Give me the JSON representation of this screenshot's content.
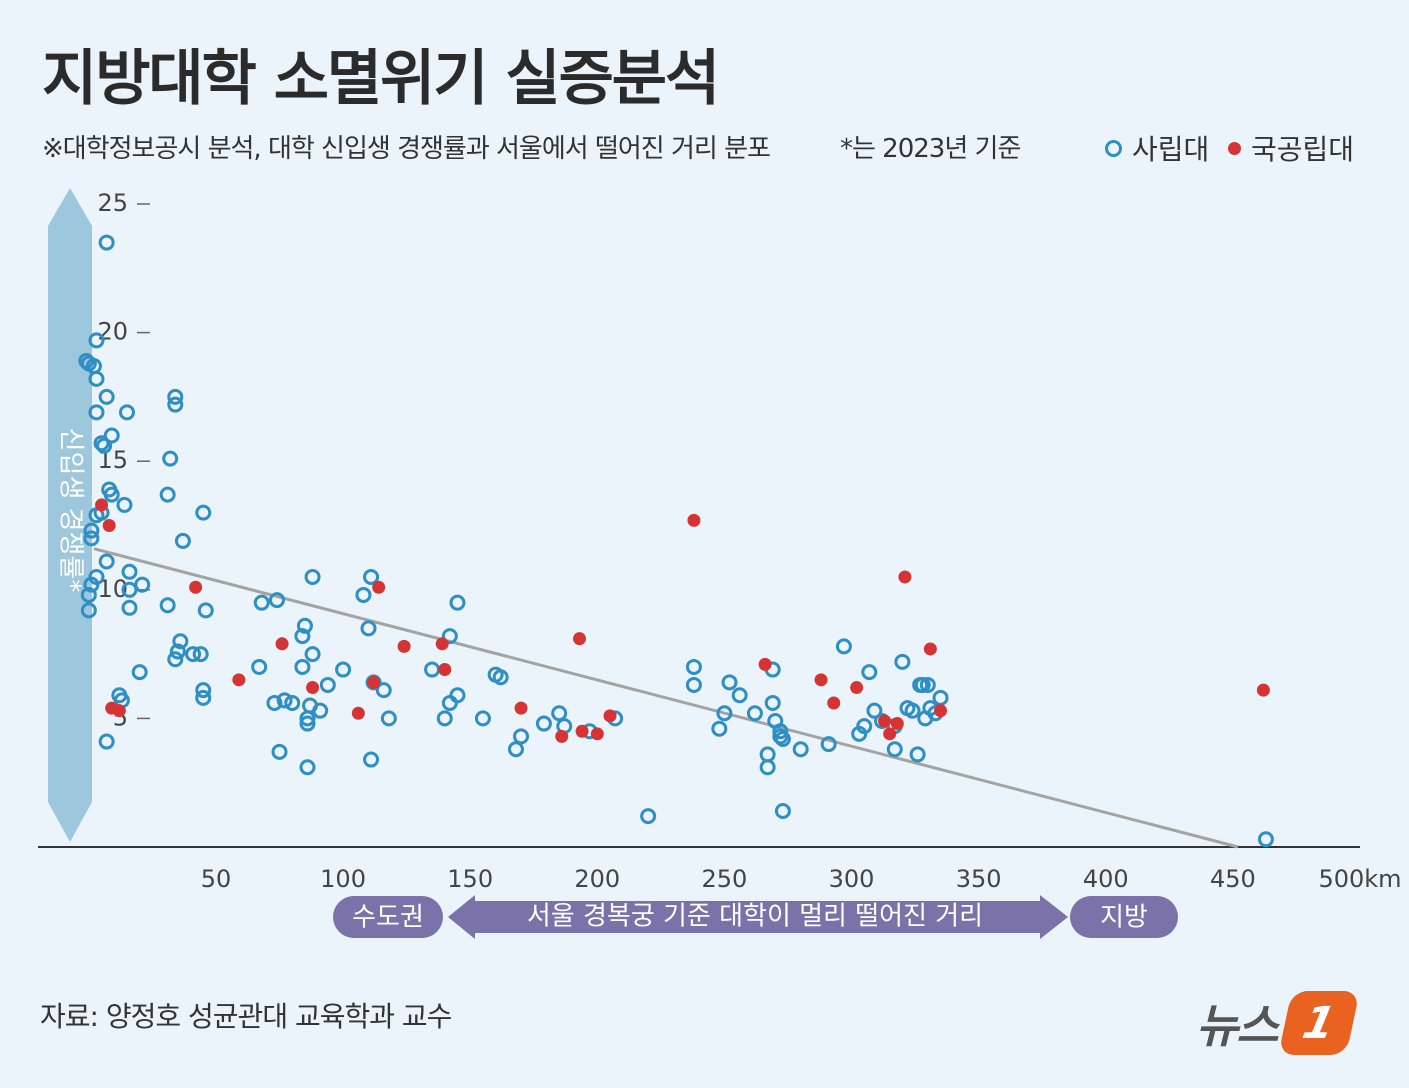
{
  "title": "지방대학 소멸위기 실증분석",
  "subtitle": "※대학정보공시 분석, 대학 신입생 경쟁률과 서울에서 떨어진 거리 분포",
  "note": "*는 2023년 기준",
  "legend": {
    "private": "사립대",
    "public": "국공립대"
  },
  "colors": {
    "private": "#2f8fc4",
    "public": "#d63434",
    "trend": "#a3a3a3",
    "axis_band": "#9dc7dd",
    "distance_band": "#7a72a8"
  },
  "source": "자료: 양정호 성균관대 교육학과 교수",
  "logo": {
    "text": "뉴스",
    "badge": "1"
  },
  "bands": {
    "capital": "수도권",
    "middle": "서울 경복궁 기준 대학이 멀리 떨어진 거리",
    "region": "지방"
  },
  "chart_data": {
    "type": "scatter",
    "ylabel": "신입생 경쟁률*",
    "xlim": [
      -20,
      500
    ],
    "ylim": [
      0,
      25
    ],
    "x_ticks": [
      {
        "v": 50,
        "label": "50"
      },
      {
        "v": 100,
        "label": "100"
      },
      {
        "v": 150,
        "label": "150"
      },
      {
        "v": 200,
        "label": "200"
      },
      {
        "v": 250,
        "label": "250"
      },
      {
        "v": 300,
        "label": "300"
      },
      {
        "v": 350,
        "label": "350"
      },
      {
        "v": 400,
        "label": "400"
      },
      {
        "v": 450,
        "label": "450"
      },
      {
        "v": 500,
        "label": "500km"
      }
    ],
    "y_ticks": [
      {
        "v": 5,
        "label": "5"
      },
      {
        "v": 10,
        "label": "10"
      },
      {
        "v": 15,
        "label": "15"
      },
      {
        "v": 20,
        "label": "20"
      },
      {
        "v": 25,
        "label": "25"
      }
    ],
    "trendline": [
      [
        2,
        11.6
      ],
      [
        452,
        0
      ]
    ],
    "series": [
      {
        "name": "사립대",
        "points": [
          [
            7,
            23.5
          ],
          [
            3,
            19.7
          ],
          [
            -1,
            18.9
          ],
          [
            0,
            18.8
          ],
          [
            2,
            18.7
          ],
          [
            3,
            18.2
          ],
          [
            7,
            17.5
          ],
          [
            3,
            16.9
          ],
          [
            9,
            16.0
          ],
          [
            5,
            15.7
          ],
          [
            6,
            15.6
          ],
          [
            15,
            16.9
          ],
          [
            34,
            17.5
          ],
          [
            34,
            17.2
          ],
          [
            32,
            15.1
          ],
          [
            31,
            13.7
          ],
          [
            8,
            13.9
          ],
          [
            9,
            13.7
          ],
          [
            14,
            13.3
          ],
          [
            5,
            13.0
          ],
          [
            3,
            12.9
          ],
          [
            1,
            12.3
          ],
          [
            1,
            12.0
          ],
          [
            7,
            11.1
          ],
          [
            37,
            11.9
          ],
          [
            45,
            13.0
          ],
          [
            16,
            10.7
          ],
          [
            21,
            10.2
          ],
          [
            3,
            10.5
          ],
          [
            1,
            10.2
          ],
          [
            0,
            9.8
          ],
          [
            0,
            9.2
          ],
          [
            16,
            10.0
          ],
          [
            16,
            9.3
          ],
          [
            31,
            9.4
          ],
          [
            46,
            9.2
          ],
          [
            36,
            8.0
          ],
          [
            35,
            7.6
          ],
          [
            34,
            7.3
          ],
          [
            41,
            7.5
          ],
          [
            44,
            7.5
          ],
          [
            20,
            6.8
          ],
          [
            12,
            5.9
          ],
          [
            13,
            5.7
          ],
          [
            45,
            6.1
          ],
          [
            45,
            5.8
          ],
          [
            7,
            4.1
          ],
          [
            68,
            9.5
          ],
          [
            74,
            9.6
          ],
          [
            85,
            8.6
          ],
          [
            84,
            8.2
          ],
          [
            88,
            10.5
          ],
          [
            100,
            6.9
          ],
          [
            84,
            7.0
          ],
          [
            88,
            7.5
          ],
          [
            67,
            7.0
          ],
          [
            77,
            5.7
          ],
          [
            73,
            5.6
          ],
          [
            80,
            5.6
          ],
          [
            86,
            5.0
          ],
          [
            86,
            4.8
          ],
          [
            91,
            5.3
          ],
          [
            87,
            5.5
          ],
          [
            94,
            6.3
          ],
          [
            75,
            3.7
          ],
          [
            86,
            3.1
          ],
          [
            111,
            10.5
          ],
          [
            108,
            9.8
          ],
          [
            110,
            8.5
          ],
          [
            112,
            6.4
          ],
          [
            116,
            6.1
          ],
          [
            118,
            5.0
          ],
          [
            111,
            3.4
          ],
          [
            145,
            9.5
          ],
          [
            142,
            8.2
          ],
          [
            135,
            6.9
          ],
          [
            145,
            5.9
          ],
          [
            142,
            5.6
          ],
          [
            140,
            5.0
          ],
          [
            155,
            5.0
          ],
          [
            160,
            6.7
          ],
          [
            162,
            6.6
          ],
          [
            170,
            4.3
          ],
          [
            168,
            3.8
          ],
          [
            179,
            4.8
          ],
          [
            185,
            5.2
          ],
          [
            187,
            4.7
          ],
          [
            197,
            4.5
          ],
          [
            207,
            5.0
          ],
          [
            220,
            1.2
          ],
          [
            238,
            7.0
          ],
          [
            238,
            6.3
          ],
          [
            248,
            4.6
          ],
          [
            250,
            5.2
          ],
          [
            252,
            6.4
          ],
          [
            256,
            5.9
          ],
          [
            262,
            5.2
          ],
          [
            267,
            3.6
          ],
          [
            267,
            3.1
          ],
          [
            269,
            6.9
          ],
          [
            269,
            5.6
          ],
          [
            270,
            4.9
          ],
          [
            272,
            4.5
          ],
          [
            272,
            4.3
          ],
          [
            273,
            4.2
          ],
          [
            273,
            1.4
          ],
          [
            280,
            3.8
          ],
          [
            297,
            7.8
          ],
          [
            303,
            4.4
          ],
          [
            305,
            4.7
          ],
          [
            307,
            6.8
          ],
          [
            309,
            5.3
          ],
          [
            312,
            4.9
          ],
          [
            317,
            4.7
          ],
          [
            317,
            3.8
          ],
          [
            320,
            7.2
          ],
          [
            322,
            5.4
          ],
          [
            324,
            5.3
          ],
          [
            326,
            3.6
          ],
          [
            327,
            6.3
          ],
          [
            328,
            6.3
          ],
          [
            329,
            5.0
          ],
          [
            330,
            6.3
          ],
          [
            331,
            5.4
          ],
          [
            333,
            5.2
          ],
          [
            335,
            5.8
          ],
          [
            291,
            4.0
          ],
          [
            463,
            0.3
          ]
        ]
      },
      {
        "name": "국공립대",
        "points": [
          [
            5,
            13.3
          ],
          [
            8,
            12.5
          ],
          [
            9,
            5.4
          ],
          [
            12,
            5.3
          ],
          [
            42,
            10.1
          ],
          [
            59,
            6.5
          ],
          [
            76,
            7.9
          ],
          [
            88,
            6.2
          ],
          [
            106,
            5.2
          ],
          [
            112,
            6.4
          ],
          [
            114,
            10.1
          ],
          [
            124,
            7.8
          ],
          [
            139,
            7.9
          ],
          [
            140,
            6.9
          ],
          [
            170,
            5.4
          ],
          [
            186,
            4.3
          ],
          [
            193,
            8.1
          ],
          [
            194,
            4.5
          ],
          [
            200,
            4.4
          ],
          [
            205,
            5.1
          ],
          [
            238,
            12.7
          ],
          [
            266,
            7.1
          ],
          [
            288,
            6.5
          ],
          [
            293,
            5.6
          ],
          [
            302,
            6.2
          ],
          [
            313,
            4.9
          ],
          [
            315,
            4.4
          ],
          [
            318,
            4.8
          ],
          [
            321,
            10.5
          ],
          [
            331,
            7.7
          ],
          [
            335,
            5.3
          ],
          [
            462,
            6.1
          ]
        ]
      }
    ]
  }
}
